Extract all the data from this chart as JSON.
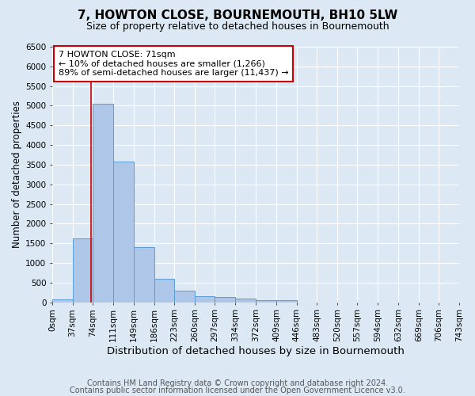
{
  "title": "7, HOWTON CLOSE, BOURNEMOUTH, BH10 5LW",
  "subtitle": "Size of property relative to detached houses in Bournemouth",
  "xlabel": "Distribution of detached houses by size in Bournemouth",
  "ylabel": "Number of detached properties",
  "bar_values": [
    75,
    1625,
    5050,
    3575,
    1400,
    600,
    300,
    155,
    130,
    90,
    55,
    50,
    0,
    0,
    0,
    0,
    0,
    0,
    0,
    0
  ],
  "bin_edges": [
    0,
    37,
    74,
    111,
    149,
    186,
    223,
    260,
    297,
    334,
    372,
    409,
    446,
    483,
    520,
    557,
    594,
    632,
    669,
    706,
    743
  ],
  "tick_labels": [
    "0sqm",
    "37sqm",
    "74sqm",
    "111sqm",
    "149sqm",
    "186sqm",
    "223sqm",
    "260sqm",
    "297sqm",
    "334sqm",
    "372sqm",
    "409sqm",
    "446sqm",
    "483sqm",
    "520sqm",
    "557sqm",
    "594sqm",
    "632sqm",
    "669sqm",
    "706sqm",
    "743sqm"
  ],
  "bar_color": "#aec6e8",
  "bar_edge_color": "#5b9bd5",
  "property_line_x": 71,
  "property_line_color": "#cc0000",
  "ylim": [
    0,
    6500
  ],
  "yticks": [
    0,
    500,
    1000,
    1500,
    2000,
    2500,
    3000,
    3500,
    4000,
    4500,
    5000,
    5500,
    6000,
    6500
  ],
  "annotation_text": "7 HOWTON CLOSE: 71sqm\n← 10% of detached houses are smaller (1,266)\n89% of semi-detached houses are larger (11,437) →",
  "annotation_box_color": "#ffffff",
  "annotation_box_edge_color": "#cc0000",
  "footer_line1": "Contains HM Land Registry data © Crown copyright and database right 2024.",
  "footer_line2": "Contains public sector information licensed under the Open Government Licence v3.0.",
  "background_color": "#dce9f5",
  "plot_bg_color": "#dce9f5",
  "grid_color": "#ffffff",
  "title_fontsize": 11,
  "subtitle_fontsize": 9,
  "xlabel_fontsize": 9.5,
  "ylabel_fontsize": 8.5,
  "tick_fontsize": 7.5,
  "footer_fontsize": 7,
  "annotation_fontsize": 8
}
